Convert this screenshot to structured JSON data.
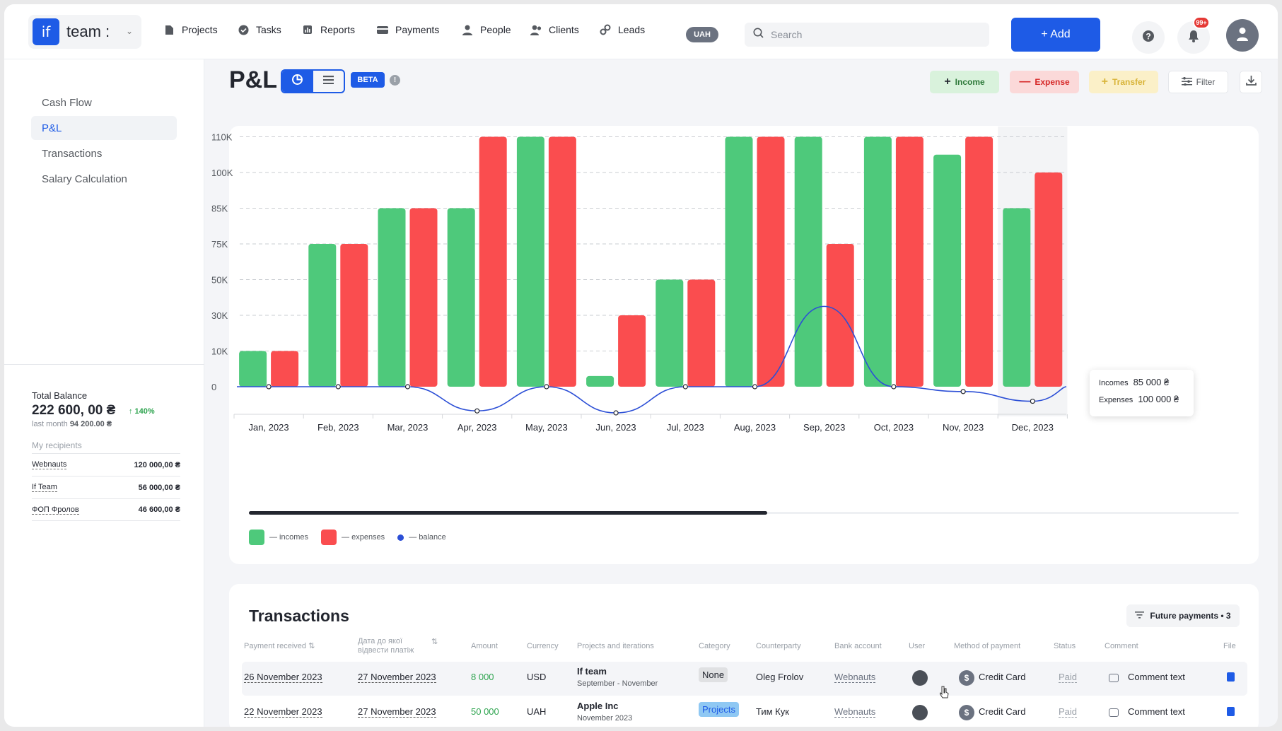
{
  "brand": {
    "logo": "if",
    "name": "team :"
  },
  "nav": [
    {
      "label": "Projects",
      "icon": "file-icon"
    },
    {
      "label": "Tasks",
      "icon": "check-circle-icon"
    },
    {
      "label": "Reports",
      "icon": "bar-chart-icon"
    },
    {
      "label": "Payments",
      "icon": "wallet-icon"
    },
    {
      "label": "People",
      "icon": "person-icon"
    },
    {
      "label": "Clients",
      "icon": "people-icon"
    },
    {
      "label": "Leads",
      "icon": "link-icon"
    }
  ],
  "currency": "UAH",
  "search": {
    "placeholder": "Search"
  },
  "add_label": "+ Add",
  "notifications_badge": "99+",
  "sidebar": {
    "items": [
      {
        "label": "Cash Flow",
        "active": false
      },
      {
        "label": "P&L",
        "active": true
      },
      {
        "label": "Transactions",
        "active": false
      },
      {
        "label": "Salary Calculation",
        "active": false
      }
    ],
    "total_balance_label": "Total Balance",
    "total_balance_value": "222 600, 00 ₴",
    "total_balance_change": "↑ 140%",
    "last_month_label": "last month",
    "last_month_value": "94 200.00 ₴",
    "recipients_title": "My recipients",
    "recipients": [
      {
        "name": "Webnauts",
        "amount": "120 000,00 ₴"
      },
      {
        "name": "If Team",
        "amount": "56 000,00 ₴"
      },
      {
        "name": "ФОП Фролов",
        "amount": "46 600,00 ₴"
      }
    ]
  },
  "header": {
    "title": "P&L",
    "beta": "BETA",
    "income": "Income",
    "expense": "Expense",
    "transfer": "Transfer",
    "filter": "Filter"
  },
  "colors": {
    "accent": "#1e5be6",
    "income": "#4ec97b",
    "expense": "#fa4d4f",
    "balance": "#2c4fd6"
  },
  "chart_data": {
    "type": "bar",
    "categories": [
      "Jan, 2023",
      "Feb, 2023",
      "Mar, 2023",
      "Apr, 2023",
      "May, 2023",
      "Jun, 2023",
      "Jul, 2023",
      "Aug, 2023",
      "Sep, 2023",
      "Oct, 2023",
      "Nov, 2023",
      "Dec, 2023"
    ],
    "y_tick_labels": [
      "0",
      "10K",
      "30K",
      "50K",
      "75K",
      "85K",
      "100K",
      "110K"
    ],
    "series": [
      {
        "name": "incomes",
        "values": [
          10000,
          75000,
          85000,
          85000,
          110000,
          3000,
          50000,
          110000,
          110000,
          110000,
          105000,
          85000
        ]
      },
      {
        "name": "expenses",
        "values": [
          10000,
          75000,
          85000,
          110000,
          110000,
          30000,
          50000,
          110000,
          75000,
          110000,
          110000,
          100000
        ]
      },
      {
        "name": "balance",
        "values": [
          0,
          0,
          0,
          -25000,
          0,
          -27000,
          0,
          0,
          35000,
          0,
          -5000,
          -15000
        ]
      }
    ],
    "legend": [
      "— incomes",
      "— expenses",
      "— balance"
    ],
    "legend_position": "bottom-left",
    "grid": true,
    "highlighted_category": "Dec, 2023",
    "tooltip": {
      "incomes_label": "Incomes",
      "incomes_value": "85 000 ₴",
      "expenses_label": "Expenses",
      "expenses_value": "100 000 ₴"
    }
  },
  "transactions": {
    "title": "Transactions",
    "future_payments": "Future payments • 3",
    "columns": [
      "Payment received",
      "Дата до якої відвести платіж",
      "Amount",
      "Currency",
      "Projects and iterations",
      "Category",
      "Counterparty",
      "Bank account",
      "User",
      "Method of payment",
      "Status",
      "Comment",
      "File"
    ],
    "rows": [
      {
        "received": "26 November 2023",
        "due": "27 November 2023",
        "amount": "8 000",
        "currency": "USD",
        "project": "If team",
        "iteration": "September - November",
        "category": "None",
        "counterparty": "Oleg Frolov",
        "bank": "Webnauts",
        "method": "Credit Card",
        "status": "Paid",
        "comment": "Comment text"
      },
      {
        "received": "22 November 2023",
        "due": "27 November 2023",
        "amount": "50 000",
        "currency": "UAH",
        "project": "Apple Inc",
        "iteration": "November 2023",
        "category": "Projects",
        "counterparty": "Тим Кук",
        "bank": "Webnauts",
        "method": "Credit Card",
        "status": "Paid",
        "comment": "Comment text"
      }
    ]
  }
}
